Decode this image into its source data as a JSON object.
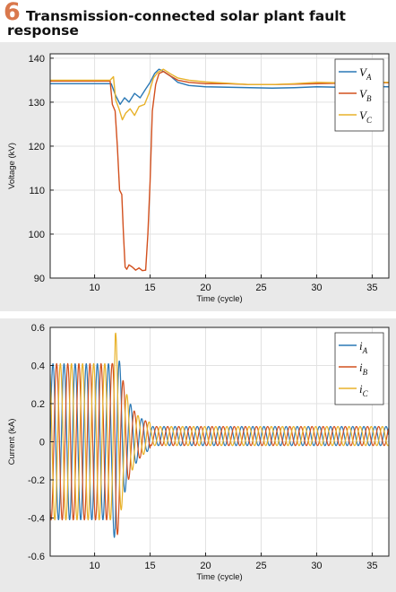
{
  "figure": {
    "number": "6",
    "title": "Transmission-connected solar plant fault response"
  },
  "colors": {
    "phase_a": "#2a78b5",
    "phase_b": "#d2501e",
    "phase_c": "#e8b22a",
    "number_accent": "#d9784c"
  },
  "chart_data": [
    {
      "type": "line",
      "xlabel": "Time (cycle)",
      "ylabel": "Voltage (kV)",
      "xlim": [
        6,
        36.5
      ],
      "ylim": [
        90,
        141
      ],
      "xticks": [
        10,
        15,
        20,
        25,
        30,
        35
      ],
      "yticks": [
        90,
        100,
        110,
        120,
        130,
        140
      ],
      "grid": true,
      "legend_position": "top-right",
      "legend": [
        {
          "base": "V",
          "sub": "A"
        },
        {
          "base": "V",
          "sub": "B"
        },
        {
          "base": "V",
          "sub": "C"
        }
      ],
      "series": [
        {
          "color_key": "phase_a",
          "x": [
            6,
            11.5,
            11.9,
            12.3,
            12.7,
            13.1,
            13.6,
            14.1,
            14.6,
            15.0,
            15.4,
            15.8,
            16.2,
            16.8,
            17.5,
            18.5,
            20,
            22,
            24,
            26,
            28,
            30,
            32,
            34,
            36.5
          ],
          "y": [
            134.2,
            134.2,
            131.5,
            129.5,
            131,
            130,
            132,
            131,
            133,
            134.5,
            136.5,
            137.5,
            137,
            136,
            134.5,
            133.8,
            133.5,
            133.4,
            133.3,
            133.2,
            133.3,
            133.5,
            133.4,
            133.6,
            133.5
          ]
        },
        {
          "color_key": "phase_b",
          "x": [
            6,
            11.4,
            11.6,
            11.85,
            12.05,
            12.25,
            12.45,
            12.6,
            12.75,
            12.9,
            13.1,
            13.4,
            13.7,
            14.0,
            14.3,
            14.6,
            14.8,
            15.0,
            15.2,
            15.5,
            15.8,
            16.2,
            16.8,
            17.5,
            18.5,
            20,
            22,
            24,
            26,
            28,
            30,
            32,
            34,
            36.5
          ],
          "y": [
            134.8,
            134.8,
            129.5,
            128,
            120,
            110,
            109,
            100,
            92.5,
            92,
            93,
            92.5,
            91.8,
            92.3,
            91.7,
            91.8,
            100,
            112,
            128,
            134,
            136.5,
            137,
            136,
            135,
            134.5,
            134.2,
            134.2,
            134.0,
            134.0,
            134.1,
            134.2,
            134.3,
            134.5,
            134.4
          ]
        },
        {
          "color_key": "phase_c",
          "x": [
            6,
            11.4,
            11.7,
            11.9,
            12.2,
            12.5,
            12.8,
            13.2,
            13.6,
            14.0,
            14.5,
            14.9,
            15.3,
            15.7,
            16.2,
            16.8,
            17.5,
            18.5,
            20,
            22,
            24,
            26,
            28,
            30,
            32,
            34,
            36.5
          ],
          "y": [
            135,
            135,
            135.8,
            130.5,
            128.5,
            126,
            127.5,
            128.5,
            127,
            129,
            129.5,
            132,
            135.5,
            136.8,
            137.5,
            136.5,
            135.5,
            135,
            134.6,
            134.3,
            134.0,
            134.0,
            134.2,
            134.5,
            134.4,
            134.6,
            134.5
          ]
        }
      ]
    },
    {
      "type": "line",
      "xlabel": "Time (cycle)",
      "ylabel": "Current (kA)",
      "xlim": [
        6,
        36.5
      ],
      "ylim": [
        -0.6,
        0.6
      ],
      "xticks": [
        10,
        15,
        20,
        25,
        30,
        35
      ],
      "yticks": [
        -0.6,
        -0.4,
        -0.2,
        0,
        0.2,
        0.4,
        0.6
      ],
      "grid": true,
      "legend_position": "top-right",
      "legend": [
        {
          "base": "i",
          "sub": "A"
        },
        {
          "base": "i",
          "sub": "B"
        },
        {
          "base": "i",
          "sub": "C"
        }
      ],
      "waveforms": [
        {
          "color_key": "phase_a",
          "phase_deg": 0
        },
        {
          "color_key": "phase_b",
          "phase_deg": -120
        },
        {
          "color_key": "phase_c",
          "phase_deg": 120
        }
      ],
      "prefault_amplitude": 0.41,
      "postfault_amplitude": 0.05,
      "postfault_offset": 0.03,
      "fault_start_cycle": 11.6,
      "recovery_cycle": 15.0,
      "peak_value": 0.55
    }
  ]
}
